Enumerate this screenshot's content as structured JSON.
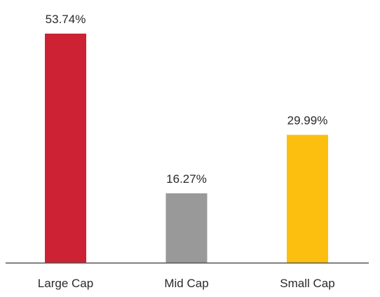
{
  "chart_data": {
    "type": "bar",
    "categories": [
      "Large Cap",
      "Mid Cap",
      "Small Cap"
    ],
    "values": [
      53.74,
      16.27,
      29.99
    ],
    "data_labels": [
      "53.74%",
      "16.27%",
      "29.99%"
    ],
    "colors": [
      "#cc2233",
      "#999999",
      "#fcbf10"
    ],
    "axis_color": "#555555",
    "ylim": [
      0,
      53.74
    ],
    "grid": false,
    "legend": "none"
  }
}
